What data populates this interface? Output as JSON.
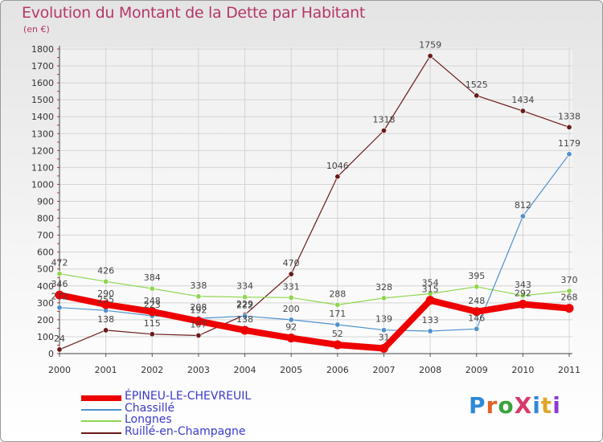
{
  "title": "Evolution du Montant de la Dette par Habitant",
  "subtitle": "(en €)",
  "logo": {
    "text": "ProXiti",
    "colors": [
      "#2f8ad8",
      "#e0622a",
      "#3aa33a",
      "#d83a6a",
      "#2f8ad8",
      "#e0a62a",
      "#8a3ad8"
    ]
  },
  "chart_data": {
    "type": "line",
    "title": "Evolution du Montant de la Dette par Habitant",
    "ylabel": "(en €)",
    "xlabel": "",
    "x": [
      "2000",
      "2001",
      "2002",
      "2003",
      "2004",
      "2005",
      "2006",
      "2007",
      "2008",
      "2009",
      "2010",
      "2011"
    ],
    "ylim": [
      0,
      1800
    ],
    "yticks": [
      0,
      100,
      200,
      300,
      400,
      500,
      600,
      700,
      800,
      900,
      1000,
      1100,
      1200,
      1300,
      1400,
      1500,
      1600,
      1700,
      1800
    ],
    "grid": true,
    "legend_position": "bottom-left",
    "series": [
      {
        "name": "ÉPINEU-LE-CHEVREUIL",
        "color": "#ee0000",
        "values": [
          346,
          290,
          248,
          192,
          138,
          92,
          52,
          31,
          315,
          248,
          292,
          268
        ]
      },
      {
        "name": "Chassillé",
        "color": "#4f91cf",
        "values": [
          272,
          255,
          223,
          208,
          222,
          200,
          171,
          139,
          133,
          146,
          812,
          1179
        ]
      },
      {
        "name": "Longnes",
        "color": "#8fd64f",
        "values": [
          472,
          426,
          384,
          338,
          334,
          331,
          288,
          328,
          354,
          395,
          343,
          370
        ]
      },
      {
        "name": "Ruillé-en-Champagne",
        "color": "#6b1a1a",
        "values": [
          24,
          138,
          115,
          107,
          229,
          470,
          1046,
          1318,
          1759,
          1525,
          1434,
          1338
        ]
      }
    ]
  }
}
